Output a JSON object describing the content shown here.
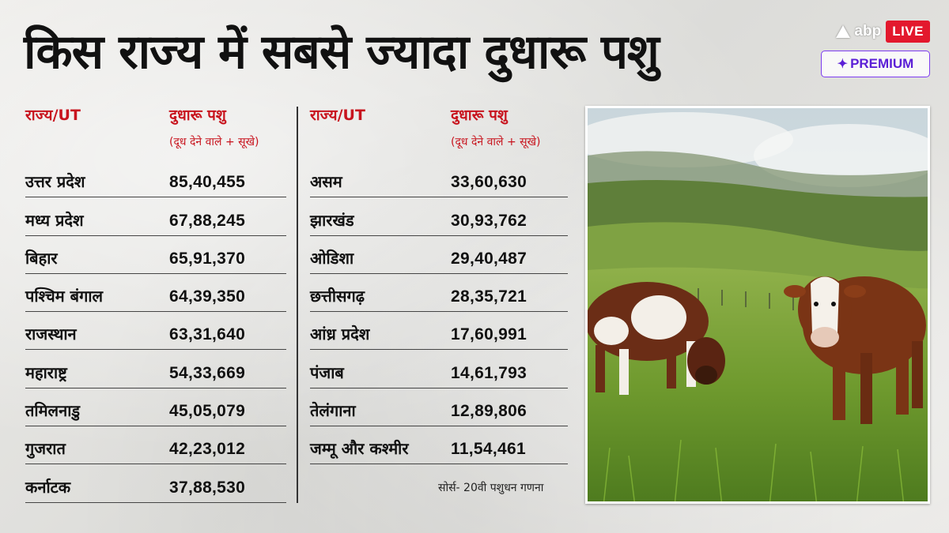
{
  "title": "किस राज्य में सबसे ज्यादा दुधारू पशु",
  "brand": {
    "abp_text": "abp",
    "live_label": "LIVE",
    "premium_label": "PREMIUM",
    "accent": "#e3182d",
    "premium_color": "#5b1fd6"
  },
  "table_header": {
    "col1": "राज्य/UT",
    "col2": "दुधारू पशु",
    "col2_sub": "(दूध देने वाले + सूखे)",
    "color": "#c8141e"
  },
  "left_rows": [
    {
      "state": "उत्तर प्रदेश",
      "value": "85,40,455"
    },
    {
      "state": "मध्य प्रदेश",
      "value": "67,88,245"
    },
    {
      "state": "बिहार",
      "value": "65,91,370"
    },
    {
      "state": "पश्चिम बंगाल",
      "value": "64,39,350"
    },
    {
      "state": "राजस्थान",
      "value": "63,31,640"
    },
    {
      "state": "महाराष्ट्र",
      "value": "54,33,669"
    },
    {
      "state": "तमिलनाडु",
      "value": "45,05,079"
    },
    {
      "state": "गुजरात",
      "value": "42,23,012"
    },
    {
      "state": "कर्नाटक",
      "value": "37,88,530"
    }
  ],
  "right_rows": [
    {
      "state": "असम",
      "value": "33,60,630"
    },
    {
      "state": "झारखंड",
      "value": "30,93,762"
    },
    {
      "state": "ओडिशा",
      "value": "29,40,487"
    },
    {
      "state": "छत्तीसगढ़",
      "value": "28,35,721"
    },
    {
      "state": "आंध्र प्रदेश",
      "value": "17,60,991"
    },
    {
      "state": "पंजाब",
      "value": "14,61,793"
    },
    {
      "state": "तेलंगाना",
      "value": "12,89,806"
    },
    {
      "state": "जम्मू और कश्मीर",
      "value": "11,54,461"
    }
  ],
  "source": "सोर्स- 20वी पशुधन गणना"
}
